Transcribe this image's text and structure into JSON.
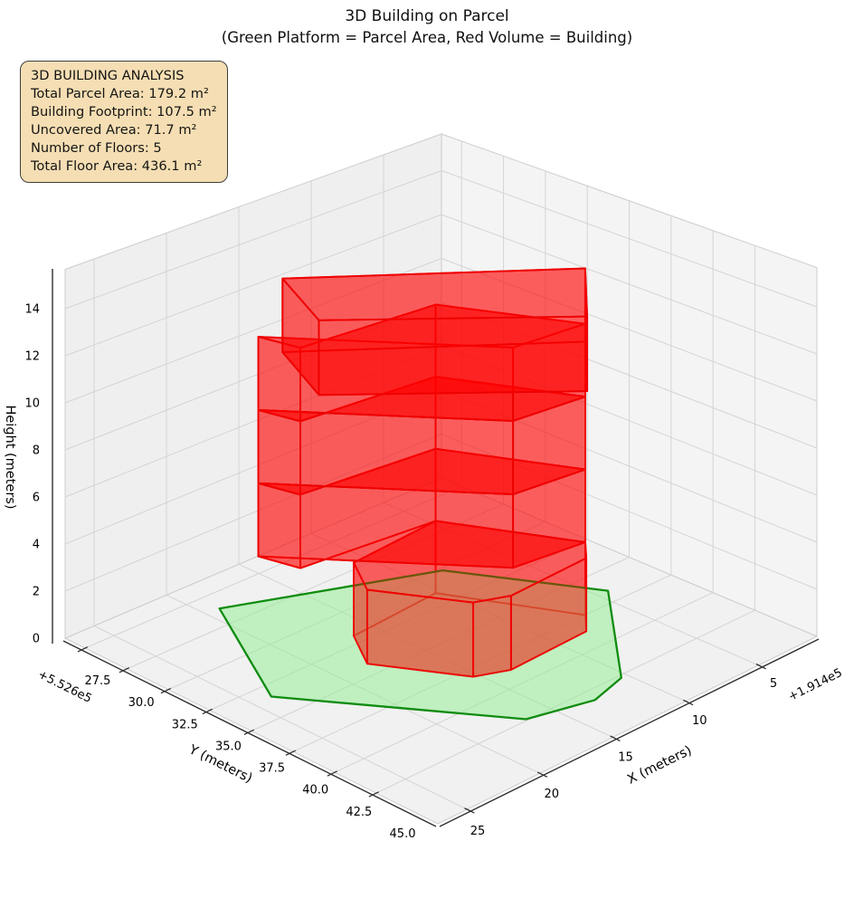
{
  "header": {
    "title_line1": "3D Building on Parcel",
    "title_line2": "(Green Platform = Parcel Area, Red Volume = Building)"
  },
  "analysis_box": {
    "title": "3D BUILDING ANALYSIS",
    "lines": [
      "Total Parcel Area: 179.2 m²",
      "Building Footprint: 107.5 m²",
      "Uncovered Area: 71.7 m²",
      "Number of Floors: 5",
      "Total Floor Area: 436.1 m²"
    ],
    "background_color": "#f5deb3",
    "border_color": "#3e3e3e"
  },
  "chart_data": {
    "type": "3d-building-plot",
    "title": "3D Building on Parcel",
    "subtitle": "(Green Platform = Parcel Area, Red Volume = Building)",
    "legend_note": "Green platform = parcel area, red volume = building",
    "axes": {
      "x": {
        "label": "X (meters)",
        "tick_labels": [
          "5",
          "10",
          "15",
          "20",
          "25"
        ],
        "tick_values": [
          5,
          10,
          15,
          20,
          25
        ],
        "offset_text": "+1.914e5",
        "range": [
          1,
          27
        ]
      },
      "y": {
        "label": "Y (meters)",
        "tick_labels": [
          "27.5",
          "30.0",
          "32.5",
          "35.0",
          "37.5",
          "40.0",
          "42.5",
          "45.0"
        ],
        "tick_values": [
          27.5,
          30.0,
          32.5,
          35.0,
          37.5,
          40.0,
          42.5,
          45.0
        ],
        "offset_text": "+5.526e5",
        "range": [
          26.3,
          48.7
        ]
      },
      "z": {
        "label": "Height (meters)",
        "tick_labels": [
          "0",
          "2",
          "4",
          "6",
          "8",
          "10",
          "12",
          "14"
        ],
        "tick_values": [
          0,
          2,
          4,
          6,
          8,
          10,
          12,
          14
        ],
        "range": [
          0,
          15.67
        ],
        "grid_tick_values": [
          2,
          4,
          6,
          8,
          10,
          12,
          14
        ]
      },
      "grid": true
    },
    "parcel": {
      "name": "parcel-area-platform",
      "z": 0,
      "vertices": [
        [
          19.1,
          28.7
        ],
        [
          23.8,
          35.9
        ],
        [
          16.6,
          44.9
        ],
        [
          12.9,
          45.8
        ],
        [
          10.4,
          45.2
        ],
        [
          4.3,
          39.1
        ],
        [
          8.3,
          32.7
        ]
      ],
      "fill": "#90ee90",
      "fill_opacity": 0.5,
      "edge": "#0f8c0f",
      "edge_width": 2.3
    },
    "building": {
      "name": "building-volume",
      "num_floors": 5,
      "floor_height": 3.134,
      "fill": "#ff0000",
      "fill_opacity": 0.38,
      "edge": "#ee0000",
      "edge_opacity": 0.9,
      "edge_width": 1.9,
      "floors": [
        {
          "footprint": [
            [
              16.4,
              34.4
            ],
            [
              10.3,
              34.0
            ],
            [
              6.9,
              40.0
            ],
            [
              8.1,
              41.1
            ],
            [
              13.5,
              41.3
            ],
            [
              15.3,
              40.6
            ],
            [
              18.0,
              36.6
            ]
          ],
          "z0": 0,
          "z1": 3.134
        },
        {
          "footprint": [
            [
              19.3,
              31.2
            ],
            [
              18.7,
              33.2
            ],
            [
              10.3,
              34.0
            ],
            [
              6.9,
              40.0
            ],
            [
              11.3,
              39.5
            ]
          ],
          "z0": 3.134,
          "z1": 6.268
        },
        {
          "footprint": [
            [
              19.3,
              31.2
            ],
            [
              18.7,
              33.2
            ],
            [
              10.3,
              34.0
            ],
            [
              6.9,
              40.0
            ],
            [
              11.3,
              39.5
            ]
          ],
          "z0": 6.268,
          "z1": 9.402
        },
        {
          "footprint": [
            [
              19.3,
              31.2
            ],
            [
              18.7,
              33.2
            ],
            [
              10.3,
              34.0
            ],
            [
              6.9,
              40.0
            ],
            [
              11.3,
              39.5
            ]
          ],
          "z0": 9.402,
          "z1": 12.536
        },
        {
          "footprint": [
            [
              19.7,
              33.0
            ],
            [
              21.9,
              37.1
            ],
            [
              12.4,
              44.9
            ],
            [
              8.4,
              41.3
            ]
          ],
          "z0": 12.536,
          "z1": 15.67
        }
      ]
    },
    "style": {
      "pane_left": "#efefef",
      "pane_right": "#f4f4f4",
      "pane_bottom": "#f1f1f1",
      "pane_border": "#cccccc",
      "grid_color": "#d4d4d4",
      "spine_color": "#2e2e2e",
      "tick_color": "#2e2e2e",
      "label_color": "#000000"
    }
  }
}
